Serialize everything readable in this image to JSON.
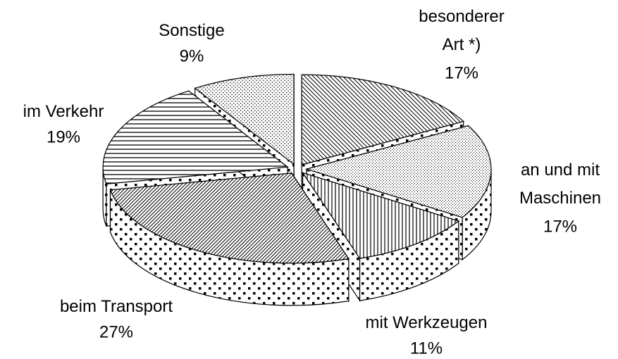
{
  "chart_data": {
    "type": "pie3d",
    "categories": [
      "besonderer Art *)",
      "an und mit Maschinen",
      "mit Werkzeugen",
      "beim Transport",
      "im Verkehr",
      "Sonstige"
    ],
    "values": [
      17,
      17,
      11,
      27,
      19,
      9
    ],
    "value_labels": [
      "17%",
      "17%",
      "11%",
      "27%",
      "19%",
      "9%"
    ]
  }
}
